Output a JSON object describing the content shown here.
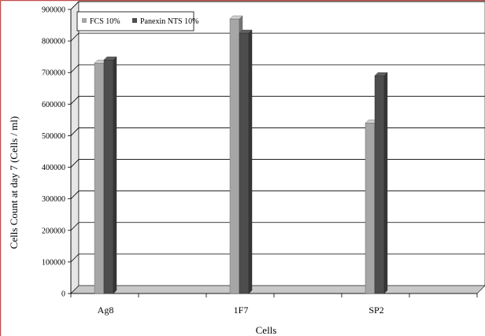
{
  "chart_data": {
    "type": "bar",
    "style": "3d-clustered-column",
    "categories": [
      "Ag8",
      "1F7",
      "SP2"
    ],
    "series": [
      {
        "name": "FCS 10%",
        "values": [
          730000,
          870000,
          540000
        ],
        "color": "#a6a6a6"
      },
      {
        "name": "Panexin NTS 10%",
        "values": [
          740000,
          825000,
          690000
        ],
        "color": "#4d4d4d"
      }
    ],
    "xlabel": "Cells",
    "ylabel": "Cells Count at day 7 (Cells / ml)",
    "ylim": [
      0,
      900000
    ],
    "yticks": [
      0,
      100000,
      200000,
      300000,
      400000,
      500000,
      600000,
      700000,
      800000,
      900000
    ],
    "grid": true,
    "legend_position": "top-left",
    "border_color": "#c0504d"
  }
}
